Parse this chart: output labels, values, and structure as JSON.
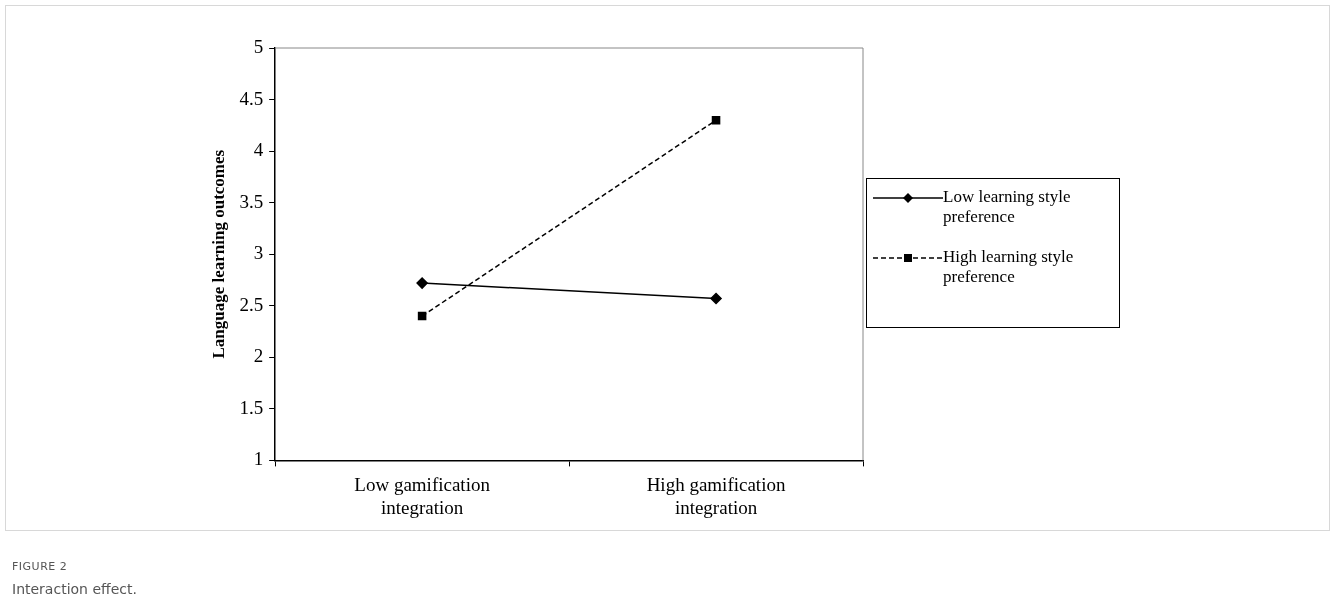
{
  "chart_data": {
    "type": "line",
    "ylabel": "Language learning outcomes",
    "categories": [
      "Low gamification integration",
      "High gamification integration"
    ],
    "series": [
      {
        "name": "Low learning style preference",
        "color": "#000000",
        "values": [
          2.72,
          2.57
        ],
        "marker": "diamond",
        "line_style": "solid"
      },
      {
        "name": "High learning style preference",
        "color": "#000000",
        "values": [
          2.4,
          4.3
        ],
        "marker": "square",
        "line_style": "dashed"
      }
    ],
    "ylim": [
      1,
      5
    ],
    "yticks": [
      1,
      1.5,
      2,
      2.5,
      3,
      3.5,
      4,
      4.5,
      5
    ],
    "grid": false,
    "legend": "right",
    "annotations": [
      "FIGURE 2",
      "Interaction effect."
    ]
  }
}
